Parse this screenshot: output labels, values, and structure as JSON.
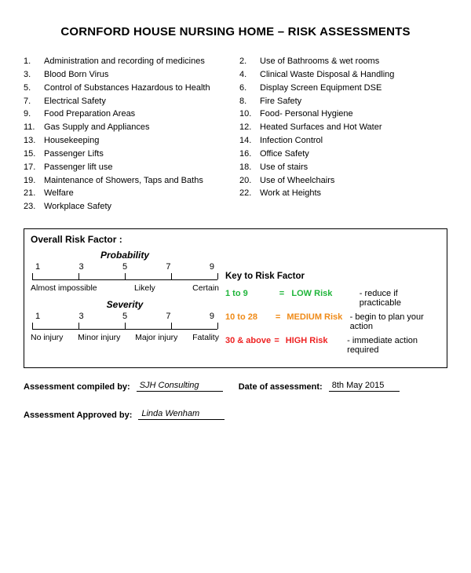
{
  "title": "CORNFORD HOUSE NURSING HOME – RISK ASSESSMENTS",
  "list_left": [
    {
      "n": "1.",
      "t": "Administration and recording of medicines"
    },
    {
      "n": "3.",
      "t": "Blood Born Virus"
    },
    {
      "n": "5.",
      "t": "Control of Substances Hazardous to Health"
    },
    {
      "n": "7.",
      "t": "Electrical Safety"
    },
    {
      "n": "9.",
      "t": "Food Preparation Areas"
    },
    {
      "n": "11.",
      "t": "Gas Supply and Appliances"
    },
    {
      "n": "13.",
      "t": "Housekeeping"
    },
    {
      "n": "15.",
      "t": "Passenger Lifts"
    },
    {
      "n": "17.",
      "t": "Passenger lift use"
    },
    {
      "n": "19.",
      "t": "Maintenance of Showers, Taps and Baths"
    },
    {
      "n": "21.",
      "t": "Welfare"
    },
    {
      "n": "23.",
      "t": "Workplace Safety"
    }
  ],
  "list_right": [
    {
      "n": "2.",
      "t": "Use of Bathrooms & wet rooms"
    },
    {
      "n": "4.",
      "t": "Clinical Waste Disposal & Handling"
    },
    {
      "n": "6.",
      "t": "Display Screen Equipment DSE"
    },
    {
      "n": "8.",
      "t": "Fire Safety"
    },
    {
      "n": "10.",
      "t": "Food- Personal Hygiene"
    },
    {
      "n": "12.",
      "t": "Heated Surfaces and Hot Water"
    },
    {
      "n": "14.",
      "t": "Infection Control"
    },
    {
      "n": "16.",
      "t": "Office Safety"
    },
    {
      "n": "18.",
      "t": "Use of stairs"
    },
    {
      "n": "20.",
      "t": "Use of Wheelchairs"
    },
    {
      "n": "22.",
      "t": "Work at Heights"
    }
  ],
  "risk": {
    "box_header": "Overall Risk Factor :",
    "probability": {
      "title": "Probability",
      "nums": [
        "1",
        "3",
        "5",
        "7",
        "9"
      ],
      "labels": [
        "Almost impossible",
        "Likely",
        "Certain"
      ]
    },
    "severity": {
      "title": "Severity",
      "nums": [
        "1",
        "3",
        "5",
        "7",
        "9"
      ],
      "labels": [
        "No injury",
        "Minor injury",
        "Major injury",
        "Fatality"
      ]
    },
    "key_title": "Key to Risk Factor",
    "key": [
      {
        "range": "1 to 9",
        "eq": "=",
        "label": "LOW Risk",
        "desc": "- reduce if practicable",
        "color": "#1fb53a"
      },
      {
        "range": "10 to 28",
        "eq": "=",
        "label": "MEDIUM Risk",
        "desc": "- begin to plan your action",
        "color": "#ef8a17"
      },
      {
        "range": "30 & above",
        "eq": "=",
        "label": "HIGH Risk",
        "desc": "- immediate action required",
        "color": "#e22"
      }
    ]
  },
  "sig": {
    "compiled_label": "Assessment compiled by:",
    "compiled_value": "SJH Consulting",
    "date_label": "Date of assessment:",
    "date_value": "8th May 2015",
    "approved_label": "Assessment Approved by:",
    "approved_value": "Linda Wenham"
  }
}
